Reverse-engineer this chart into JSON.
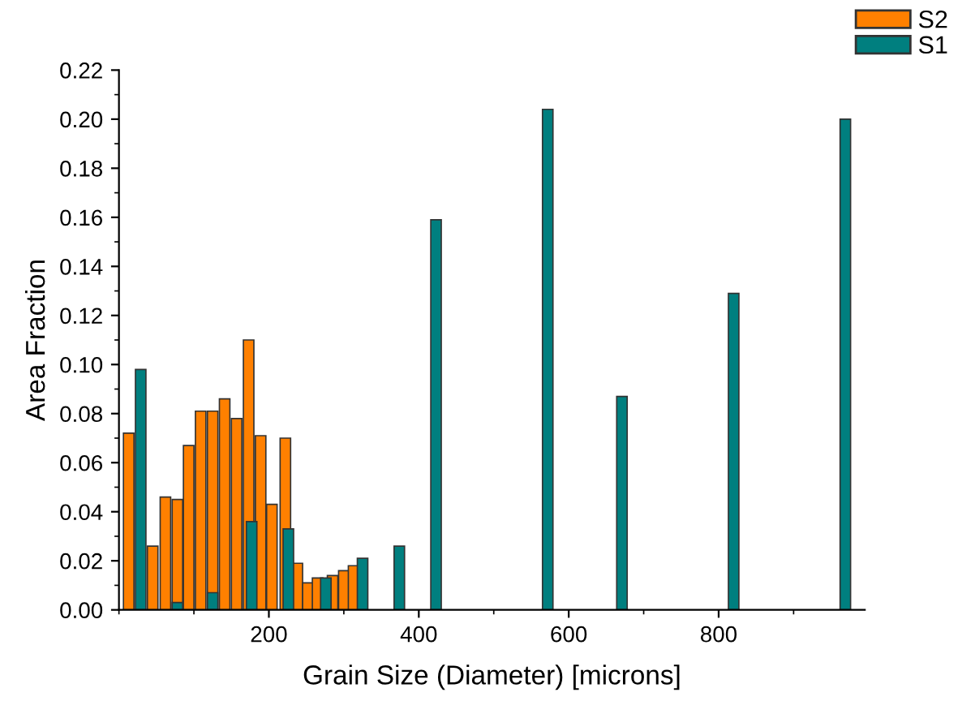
{
  "chart_data": {
    "type": "bar",
    "xlabel": "Grain Size (Diameter) [microns]",
    "ylabel": "Area Fraction",
    "xlim": [
      0,
      995
    ],
    "xticks": [
      200,
      400,
      600,
      800
    ],
    "ylim": [
      0,
      0.22
    ],
    "yticks": [
      {
        "value": 0,
        "label": "0.00"
      },
      {
        "value": 0.02,
        "label": "0.02"
      },
      {
        "value": 0.04,
        "label": "0.04"
      },
      {
        "value": 0.06,
        "label": "0.06"
      },
      {
        "value": 0.08,
        "label": "0.08"
      },
      {
        "value": 0.1,
        "label": "0.10"
      },
      {
        "value": 0.12,
        "label": "0.12"
      },
      {
        "value": 0.14,
        "label": "0.14"
      },
      {
        "value": 0.16,
        "label": "0.16"
      },
      {
        "value": 0.18,
        "label": "0.18"
      },
      {
        "value": 0.2,
        "label": "0.20"
      },
      {
        "value": 0.22,
        "label": "0.22"
      }
    ],
    "legend": "top right",
    "grid": false,
    "series": [
      {
        "name": "S2",
        "color": "#ff8000",
        "x": [
          13,
          45,
          62,
          78,
          93,
          109,
          125,
          141,
          157,
          173,
          189,
          204,
          222,
          238,
          252,
          265,
          285,
          300,
          313
        ],
        "values": [
          0.072,
          0.026,
          0.046,
          0.045,
          0.067,
          0.081,
          0.081,
          0.086,
          0.078,
          0.11,
          0.071,
          0.043,
          0.07,
          0.019,
          0.011,
          0.013,
          0.014,
          0.016,
          0.018
        ]
      },
      {
        "name": "S1",
        "color": "#007f7f",
        "x": [
          29,
          78,
          125,
          177,
          226,
          276,
          325,
          374,
          423,
          572,
          671,
          820,
          969
        ],
        "values": [
          0.098,
          0.003,
          0.007,
          0.036,
          0.033,
          0.013,
          0.021,
          0.026,
          0.159,
          0.204,
          0.087,
          0.129,
          0.2
        ]
      }
    ]
  }
}
